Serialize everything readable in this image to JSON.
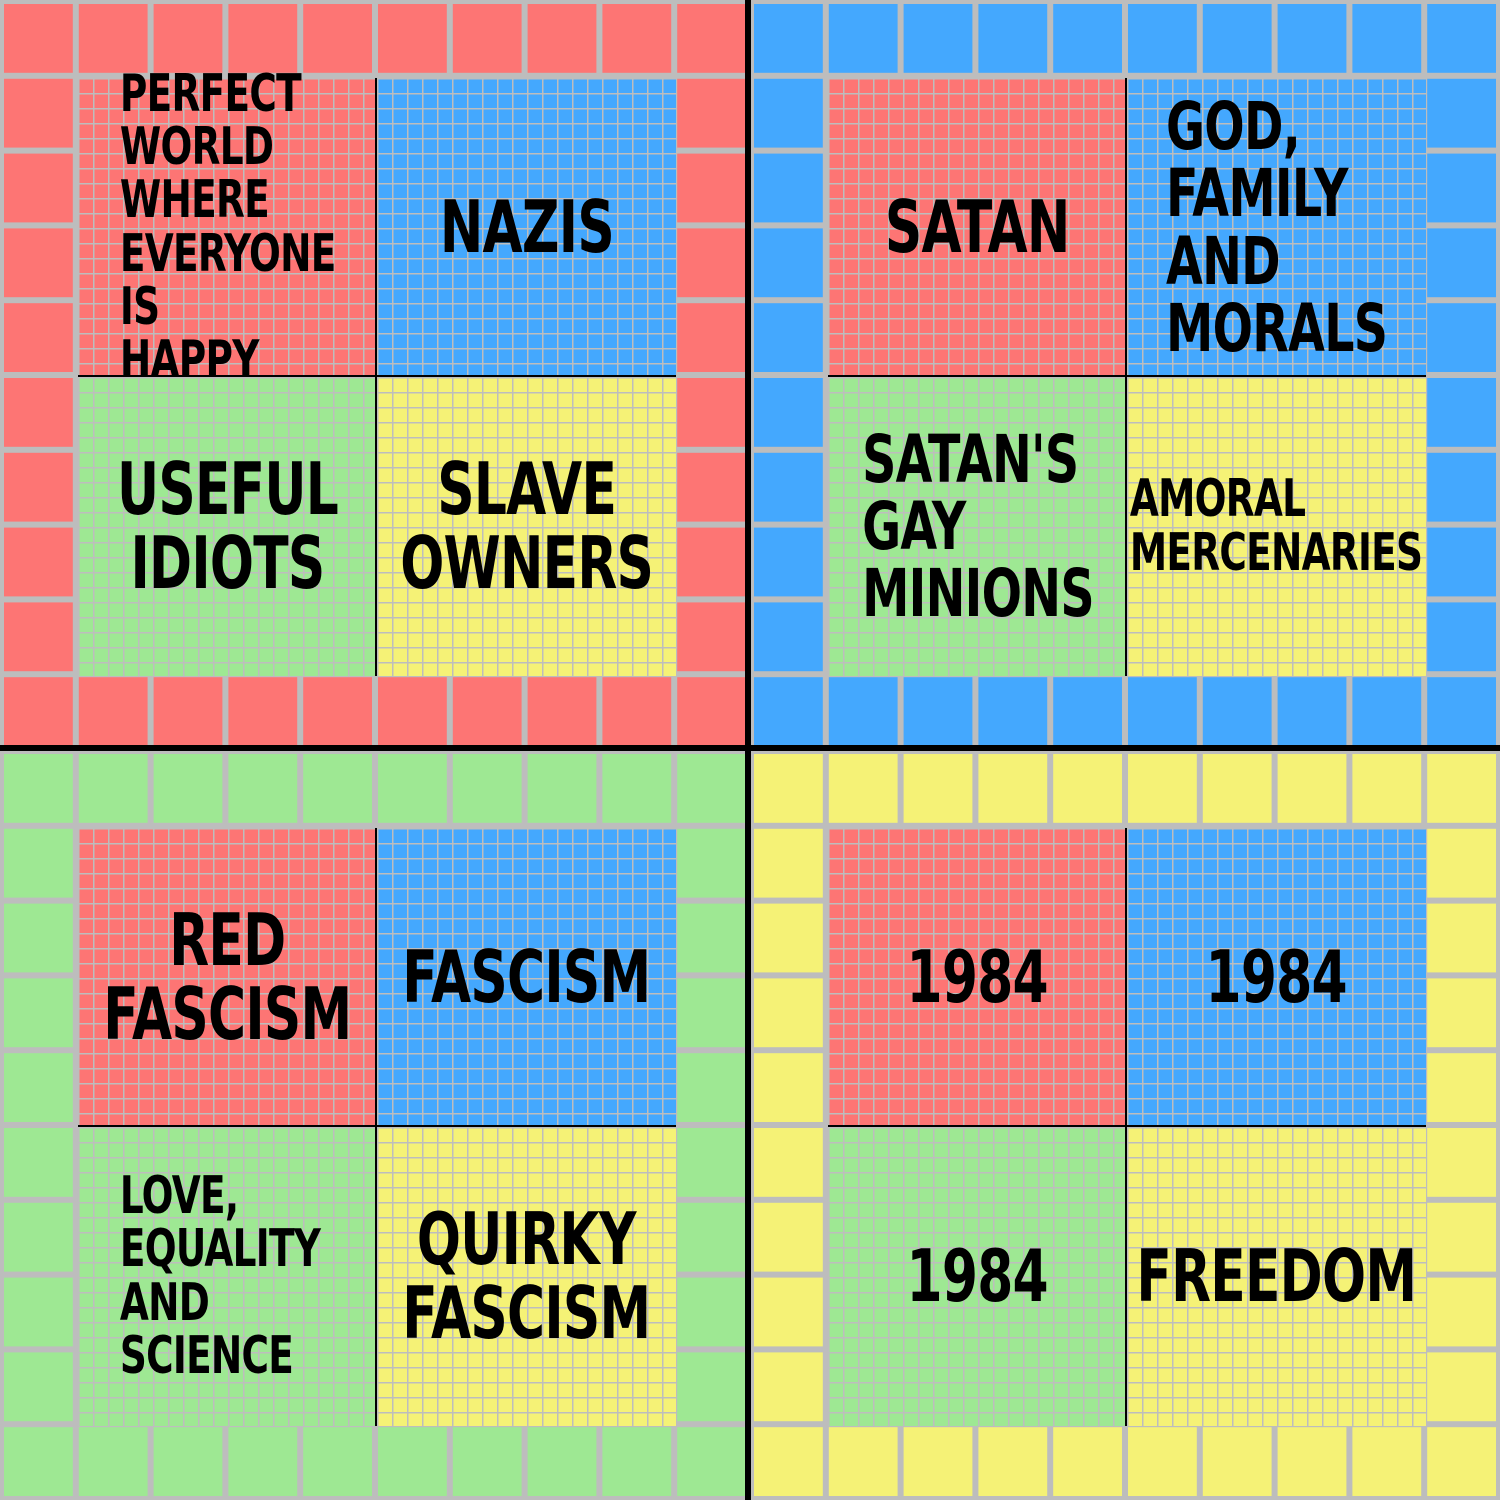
{
  "colors": {
    "red": "#fd7574",
    "blue": "#44a8fe",
    "green": "#9ee893",
    "yellow": "#f5f276",
    "grid": "#bdbdbd",
    "axis": "#000000"
  },
  "quadrants": [
    {
      "color": "red",
      "cells": [
        {
          "color": "red",
          "label": "PERFECT\nWORLD WHERE\nEVERYONE IS\nHAPPY"
        },
        {
          "color": "blue",
          "label": "NAZIS"
        },
        {
          "color": "green",
          "label": "USEFUL\nIDIOTS"
        },
        {
          "color": "yellow",
          "label": "SLAVE\nOWNERS"
        }
      ]
    },
    {
      "color": "blue",
      "cells": [
        {
          "color": "red",
          "label": "SATAN"
        },
        {
          "color": "blue",
          "label": "GOD,\nFAMILY AND\nMORALS"
        },
        {
          "color": "green",
          "label": "SATAN'S\nGAY\nMINIONS"
        },
        {
          "color": "yellow",
          "label": "AMORAL\nMERCENARIES"
        }
      ]
    },
    {
      "color": "green",
      "cells": [
        {
          "color": "red",
          "label": "RED\nFASCISM"
        },
        {
          "color": "blue",
          "label": "FASCISM"
        },
        {
          "color": "green",
          "label": "LOVE, EQUALITY\nAND SCIENCE"
        },
        {
          "color": "yellow",
          "label": "QUIRKY\nFASCISM"
        }
      ]
    },
    {
      "color": "yellow",
      "cells": [
        {
          "color": "red",
          "label": "1984"
        },
        {
          "color": "blue",
          "label": "1984"
        },
        {
          "color": "green",
          "label": "1984"
        },
        {
          "color": "yellow",
          "label": "FREEDOM"
        }
      ]
    }
  ]
}
